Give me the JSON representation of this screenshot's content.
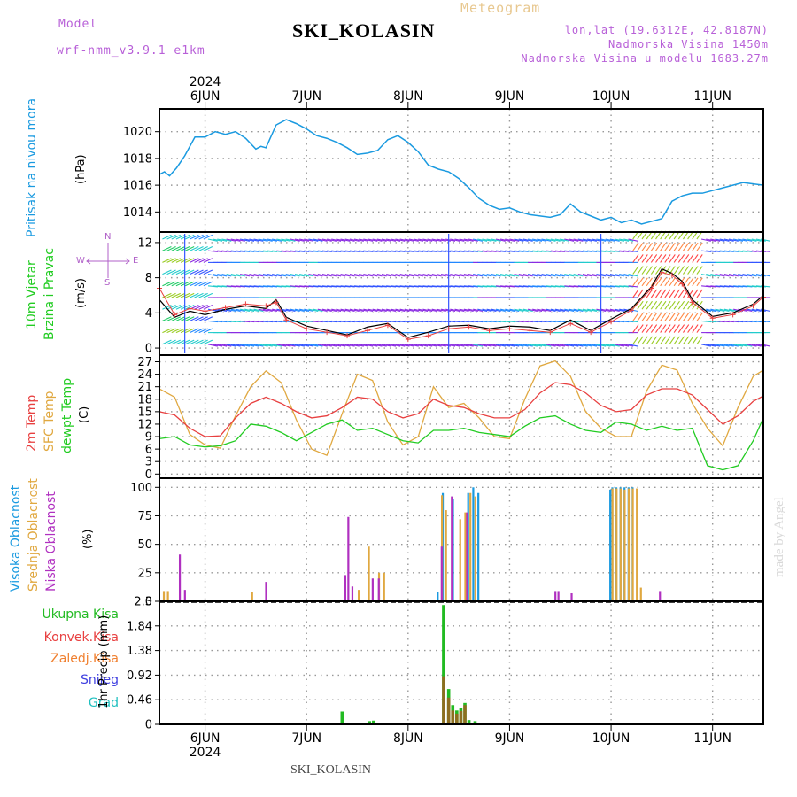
{
  "header": {
    "model_label": "Model",
    "model_name": "wrf-nmm_v3.9.1 e1km",
    "station": "SKI_KOLASIN",
    "meteogram": "Meteogram",
    "lonlat": "lon,lat (19.6312E, 42.8187N)",
    "elevation": "Nadmorska Visina 1450m",
    "model_elevation": "Nadmorska Visina u modelu 1683.27m"
  },
  "footer": {
    "station": "SKI_KOLASIN",
    "watermark": "made by Angel"
  },
  "colors": {
    "pressure": "#1a9ae0",
    "t2m": "#e84040",
    "sfc": "#e0a840",
    "dewpt": "#22cc22",
    "high_cloud": "#1a9ae0",
    "mid_cloud": "#e0a840",
    "low_cloud": "#b030c0",
    "precip_total": "#22bb22",
    "precip_conv": "#e84040",
    "precip_frozen": "#f08030",
    "snow": "#4040e0",
    "grad": "#20c0c0"
  },
  "panel_labels": {
    "pressure": [
      "Pritisak na nivou mora",
      "(hPa)"
    ],
    "wind": [
      "10m Vjetar",
      "Brzina i Pravac",
      "(m/s)"
    ],
    "wind_compass": [
      "N",
      "W",
      "E",
      "S"
    ],
    "temp": [
      "2m Temp",
      "SFC Temp",
      "dewpt Temp",
      "(C)"
    ],
    "cloud": [
      "Visoka Oblacnost",
      "Srednja Oblacnost",
      "Niska Oblacnost",
      "(%)"
    ],
    "precip_legend": [
      "Ukupna Kisa",
      "Konvek.Kisa",
      "Zaledj.Kisa",
      "Snijeg",
      "Grad"
    ],
    "precip_ylabel": "1hr Precip (mm)"
  },
  "chart_data": {
    "type": "line",
    "x_axis": {
      "labels": [
        "6JUN",
        "7JUN",
        "8JUN",
        "9JUN",
        "10JUN",
        "11JUN"
      ],
      "year": "2024",
      "range_days": [
        5.55,
        11.5
      ]
    },
    "pressure": {
      "ylabel": "(hPa)",
      "yticks": [
        1014,
        1016,
        1018,
        1020
      ],
      "ylim": [
        1012.5,
        1021.7
      ],
      "x": [
        5.55,
        5.6,
        5.65,
        5.72,
        5.8,
        5.9,
        6.0,
        6.1,
        6.2,
        6.3,
        6.4,
        6.5,
        6.55,
        6.6,
        6.7,
        6.8,
        6.9,
        7.0,
        7.1,
        7.2,
        7.3,
        7.4,
        7.5,
        7.6,
        7.7,
        7.8,
        7.9,
        8.0,
        8.1,
        8.2,
        8.3,
        8.4,
        8.5,
        8.6,
        8.7,
        8.8,
        8.9,
        9.0,
        9.1,
        9.2,
        9.3,
        9.4,
        9.5,
        9.6,
        9.7,
        9.8,
        9.9,
        10.0,
        10.1,
        10.2,
        10.3,
        10.4,
        10.5,
        10.6,
        10.7,
        10.8,
        10.9,
        11.0,
        11.1,
        11.2,
        11.3,
        11.4,
        11.5
      ],
      "values": [
        1016.8,
        1017.0,
        1016.7,
        1017.3,
        1018.2,
        1019.6,
        1019.6,
        1020.0,
        1019.8,
        1020.0,
        1019.5,
        1018.7,
        1018.9,
        1018.8,
        1020.5,
        1020.9,
        1020.6,
        1020.2,
        1019.7,
        1019.5,
        1019.2,
        1018.8,
        1018.3,
        1018.4,
        1018.6,
        1019.4,
        1019.7,
        1019.2,
        1018.5,
        1017.5,
        1017.2,
        1017.0,
        1016.5,
        1015.8,
        1015.0,
        1014.5,
        1014.2,
        1014.3,
        1014.0,
        1013.8,
        1013.7,
        1013.6,
        1013.8,
        1014.6,
        1014.0,
        1013.7,
        1013.4,
        1013.6,
        1013.2,
        1013.4,
        1013.1,
        1013.3,
        1013.5,
        1014.8,
        1015.2,
        1015.4,
        1015.4,
        1015.6,
        1015.8,
        1016.0,
        1016.2,
        1016.1,
        1016.0
      ]
    },
    "wind": {
      "ylabel": "(m/s)",
      "yticks": [
        0,
        4,
        8,
        12
      ],
      "ylim": [
        -0.8,
        13.2
      ],
      "x": [
        5.55,
        5.7,
        5.85,
        6.0,
        6.2,
        6.4,
        6.6,
        6.7,
        6.8,
        7.0,
        7.2,
        7.4,
        7.6,
        7.8,
        8.0,
        8.2,
        8.4,
        8.6,
        8.8,
        9.0,
        9.2,
        9.4,
        9.6,
        9.8,
        10.0,
        10.2,
        10.4,
        10.5,
        10.6,
        10.7,
        10.8,
        11.0,
        11.2,
        11.4,
        11.5
      ],
      "speed": [
        5.5,
        3.5,
        4.2,
        3.8,
        4.4,
        4.8,
        4.5,
        5.5,
        3.5,
        2.5,
        2.0,
        1.5,
        2.4,
        2.8,
        1.2,
        1.8,
        2.5,
        2.6,
        2.2,
        2.5,
        2.4,
        2.0,
        3.2,
        2.0,
        3.3,
        4.5,
        7.0,
        9.0,
        8.5,
        7.6,
        5.5,
        3.6,
        4.0,
        5.0,
        6.0
      ],
      "gust": [
        6.8,
        3.8,
        4.5,
        4.2,
        4.6,
        5.0,
        4.8,
        5.2,
        3.2,
        2.2,
        1.8,
        1.4,
        2.0,
        2.6,
        1.0,
        1.4,
        2.2,
        2.4,
        2.0,
        2.2,
        2.0,
        1.8,
        2.8,
        1.8,
        3.0,
        4.3,
        6.8,
        8.6,
        8.3,
        7.3,
        5.2,
        3.4,
        3.8,
        4.8,
        5.8
      ]
    },
    "temperature": {
      "ylabel": "(C)",
      "yticks": [
        0,
        3,
        6,
        9,
        12,
        15,
        18,
        21,
        24,
        27
      ],
      "ylim": [
        -1,
        28.6
      ],
      "x": [
        5.55,
        5.7,
        5.85,
        6.0,
        6.15,
        6.3,
        6.45,
        6.6,
        6.75,
        6.9,
        7.05,
        7.2,
        7.35,
        7.5,
        7.65,
        7.8,
        7.95,
        8.1,
        8.25,
        8.4,
        8.55,
        8.7,
        8.85,
        9.0,
        9.15,
        9.3,
        9.45,
        9.6,
        9.75,
        9.9,
        10.05,
        10.2,
        10.35,
        10.5,
        10.65,
        10.8,
        10.95,
        11.1,
        11.25,
        11.4,
        11.5
      ],
      "t2m": [
        15.0,
        14.2,
        11.0,
        9.0,
        9.2,
        13.5,
        17.0,
        18.5,
        17.0,
        15.0,
        13.5,
        14.0,
        16.0,
        18.5,
        18.0,
        15.0,
        13.5,
        14.5,
        18.0,
        16.5,
        16.0,
        14.5,
        13.5,
        13.5,
        15.5,
        19.5,
        22.0,
        21.5,
        19.5,
        16.5,
        15.0,
        15.5,
        19.0,
        20.5,
        20.5,
        19.0,
        15.5,
        12.0,
        14.0,
        17.5,
        18.8
      ],
      "sfc": [
        20.5,
        18.5,
        9.5,
        7.0,
        6.2,
        14.0,
        21.0,
        24.8,
        22.0,
        13.0,
        6.0,
        4.5,
        14.5,
        24.0,
        22.5,
        12.5,
        7.0,
        9.0,
        21.0,
        16.0,
        17.0,
        13.5,
        9.0,
        8.5,
        18.0,
        26.0,
        27.2,
        23.5,
        15.0,
        11.0,
        9.0,
        9.0,
        20.0,
        26.2,
        25.0,
        17.0,
        11.0,
        6.8,
        16.0,
        23.5,
        25.0
      ],
      "dewpt": [
        8.5,
        9.0,
        7.0,
        6.5,
        6.8,
        8.0,
        12.0,
        11.5,
        10.0,
        8.0,
        10.0,
        12.0,
        13.0,
        10.5,
        11.0,
        9.5,
        8.0,
        7.5,
        10.5,
        10.5,
        11.0,
        10.0,
        9.5,
        9.0,
        11.5,
        13.5,
        14.0,
        12.0,
        10.5,
        10.0,
        12.5,
        12.0,
        10.5,
        11.5,
        10.5,
        11.0,
        2.0,
        1.0,
        2.0,
        8.0,
        13.5
      ]
    },
    "cloud": {
      "ylabel": "(%)",
      "yticks": [
        0,
        25,
        50,
        75,
        100
      ],
      "ylim": [
        0,
        108
      ],
      "high": {
        "x": [
          8.3,
          8.35,
          8.45,
          8.6,
          8.65,
          8.7,
          10.0,
          10.02,
          10.06,
          10.1,
          10.14,
          10.18,
          10.22
        ],
        "values": [
          8,
          95,
          90,
          95,
          100,
          95,
          98,
          100,
          100,
          100,
          100,
          100,
          100
        ]
      },
      "mid": {
        "x": [
          5.58,
          5.62,
          6.45,
          7.5,
          7.6,
          7.7,
          7.75,
          8.32,
          8.36,
          8.5,
          8.55,
          8.6,
          8.65,
          10.0,
          10.04,
          10.08,
          10.12,
          10.16,
          10.2,
          10.24,
          10.28
        ],
        "values": [
          9,
          9,
          8,
          10,
          48,
          25,
          25,
          93,
          80,
          72,
          78,
          95,
          92,
          99,
          99,
          99,
          98,
          99,
          99,
          99,
          12
        ]
      },
      "low": {
        "x": [
          5.72,
          5.77,
          6.57,
          7.35,
          7.38,
          7.42,
          7.62,
          7.68,
          8.3,
          8.4,
          8.55,
          9.42,
          9.45,
          9.58,
          10.45
        ],
        "values": [
          41,
          10,
          17,
          23,
          74,
          13,
          20,
          20,
          48,
          92,
          78,
          9,
          9,
          7,
          9
        ]
      }
    },
    "precip": {
      "ylabel": "1hr Precip (mm)",
      "yticks": [
        0,
        0.46,
        0.92,
        1.38,
        1.84,
        2.3
      ],
      "ylim": [
        0,
        2.3
      ],
      "total": {
        "x": [
          7.35,
          7.62,
          7.66,
          8.35,
          8.4,
          8.44,
          8.48,
          8.52,
          8.56,
          8.6,
          8.66
        ],
        "values": [
          0.24,
          0.06,
          0.07,
          2.23,
          0.66,
          0.36,
          0.26,
          0.3,
          0.4,
          0.08,
          0.06
        ]
      },
      "convective": {
        "x": [
          8.35,
          8.4,
          8.44,
          8.48,
          8.52,
          8.56
        ],
        "values": [
          0.9,
          0.5,
          0.26,
          0.2,
          0.25,
          0.36
        ]
      }
    }
  }
}
